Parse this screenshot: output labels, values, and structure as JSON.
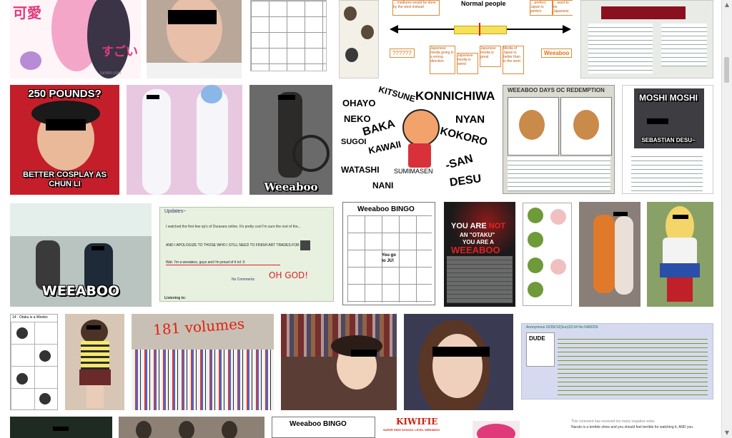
{
  "row1": {
    "kawaii": {
      "jp_left": "可愛",
      "jp_right": "すごい",
      "watermark": "tumblr.com"
    },
    "spectrum": {
      "title": "Normal people",
      "boxes": [
        "Japanese media great",
        "Japanese media is weird",
        "Japanese media is great",
        "Media of Japan is better than in the west"
      ],
      "top_boxes": [
        "... mediums would be done by the west instead",
        "... perfect, Japan is perfect",
        "... want to be Japanese"
      ],
      "left_label": "??????",
      "right_label": "Weeaboo",
      "bottom_left": "Japanese media going in a wrong direction"
    }
  },
  "row2": {
    "pounds": {
      "top": "250 POUNDS?",
      "bottom": "BETTER COSPLAY AS CHUN LI"
    },
    "bike": {
      "caption": "Weeaboo"
    },
    "words": {
      "items": [
        "OHAYO",
        "KITSUNE",
        "KONNICHIWA",
        "NEKO",
        "BAKA",
        "NYAN",
        "SUGOI",
        "KAWAII",
        "KOKORO",
        "WATASHI",
        "SUMIMASEN",
        "-SAN",
        "NANI",
        "DESU"
      ]
    },
    "redemption": {
      "title": "WEEABOO DAYS OC REDEMPTION"
    },
    "moshi": {
      "title": "MOSHI MOSHI",
      "caption": "SEBASTIAN DESU~"
    }
  },
  "row3": {
    "train": {
      "caption": "WEEABOO"
    },
    "updates": {
      "header": "Updates~",
      "text": "I watched the first few ep's of Durarara online. It's pretty cool I'm sure the rest of the...",
      "highlight": "AND I APOLOGIZE TO THOSE WHO I STILL NEED TO FINISH ART TRADES FOR",
      "quote": "Wat. I'm a weeaboo, guys and I'm proud of it lol :3",
      "ohgod": "OH GOD!",
      "comments": "No Comments",
      "footer": "Listening to:"
    },
    "bingo": {
      "title": "Weeaboo BINGO",
      "center": "You go to JU!"
    },
    "notanotaku": {
      "l1": "YOU ARE",
      "not": "NOT",
      "l2": "AN \"OTAKU\"",
      "l3": "YOU ARE A",
      "l4": "WEEABOO"
    }
  },
  "row4": {
    "volumes": {
      "text": "181 volumes"
    },
    "otaku": {
      "title": "14 - Otaku is a Weebo"
    },
    "chan": {
      "dude": "DUDE",
      "post": "Anonymous 02/05/12(Sun)23:34 No.5460255"
    }
  },
  "row5": {
    "bingo2": {
      "title": "Weeaboo BINGO"
    },
    "kiwifie": {
      "title": "KIWIFIE",
      "sub": "SUPER HIGH SCHOOL LEVEL WEEABOO"
    },
    "comments": {
      "text": "This comment has received too many negative votes",
      "text2": "Naruto is a terrible show and you should feel terrible for watching it, AND you"
    }
  },
  "colors": {
    "background": "#ffffff",
    "censor": "#000000",
    "chat_panel": "#e8f0e0",
    "chan_panel": "#d6daf0"
  }
}
